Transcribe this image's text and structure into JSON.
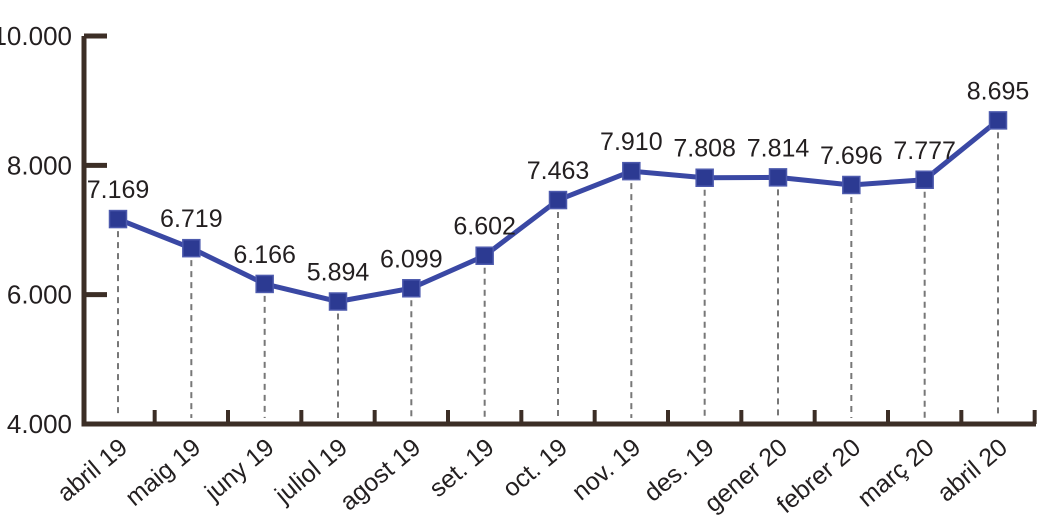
{
  "figure": {
    "background": "#ffffff",
    "title": "",
    "legend": "none"
  },
  "chart_data": {
    "type": "line",
    "title": "",
    "xlabel": "",
    "ylabel": "",
    "categories": [
      "abril 19",
      "maig 19",
      "juny 19",
      "juliol 19",
      "agost 19",
      "set. 19",
      "oct. 19",
      "nov. 19",
      "des. 19",
      "gener 20",
      "febrer 20",
      "març 20",
      "abril 20"
    ],
    "values": [
      7169,
      6719,
      6166,
      5894,
      6099,
      6602,
      7463,
      7910,
      7808,
      7814,
      7696,
      7777,
      8695
    ],
    "point_labels": [
      "7.169",
      "6.719",
      "6.166",
      "5.894",
      "6.099",
      "6.602",
      "7.463",
      "7.910",
      "7.808",
      "7.814",
      "7.696",
      "7.777",
      "8.695"
    ],
    "y_ticks": [
      {
        "value": 4000,
        "label": "4.000"
      },
      {
        "value": 6000,
        "label": "6.000"
      },
      {
        "value": 8000,
        "label": "8.000"
      },
      {
        "value": 10000,
        "label": "10.000"
      }
    ],
    "ylim": [
      4000,
      10000
    ],
    "grid": "vertical dashed guide from each point down to x-axis",
    "legend_position": "none",
    "marker_shape": "square",
    "colors": {
      "line": "#3a48a4",
      "marker_fill": "#2c3a92",
      "marker_edge": "#4d5aad",
      "axis": "#3c2e26",
      "guide_dashed": "#777777",
      "text": "#231f20",
      "background": "#ffffff"
    }
  }
}
